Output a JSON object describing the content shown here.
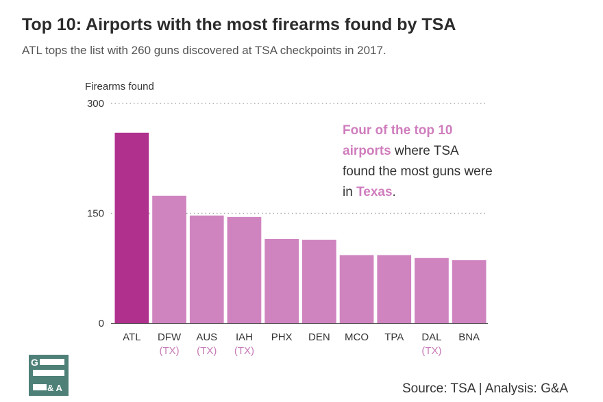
{
  "title": "Top 10: Airports with the most firearms found by TSA",
  "subtitle": "ATL tops the list with 260 guns discovered at TSA checkpoints in 2017.",
  "annotation": {
    "highlight_1": "Four of the top 10 airports",
    "text_1": " where TSA found the most guns were in ",
    "highlight_2": "Texas",
    "text_2": "."
  },
  "source": "Source: TSA | Analysis: G&A",
  "logo": {
    "top_letter": "G",
    "bottom_text": "& A"
  },
  "colors": {
    "highlight_bar": "#b0308e",
    "bar": "#cf84bf",
    "texas_label": "#c67ab7",
    "axis": "#555555",
    "gridline": "#aaaaaa",
    "logo": "#4e8078"
  },
  "chart_data": {
    "type": "bar",
    "title": "Top 10: Airports with the most firearms found by TSA",
    "subtitle": "ATL tops the list with 260 guns discovered at TSA checkpoints in 2017.",
    "ylabel": "Firearms found",
    "xlabel": "",
    "ylim": [
      0,
      300
    ],
    "yticks": [
      0,
      150,
      300
    ],
    "grid": "dotted at 150 and 300",
    "categories": [
      "ATL",
      "DFW",
      "AUS",
      "IAH",
      "PHX",
      "DEN",
      "MCO",
      "TPA",
      "DAL",
      "BNA"
    ],
    "sublabels": [
      "",
      "(TX)",
      "(TX)",
      "(TX)",
      "",
      "",
      "",
      "",
      "(TX)",
      ""
    ],
    "values": [
      260,
      174,
      147,
      145,
      115,
      114,
      93,
      93,
      89,
      86
    ],
    "highlight_index": 0
  }
}
